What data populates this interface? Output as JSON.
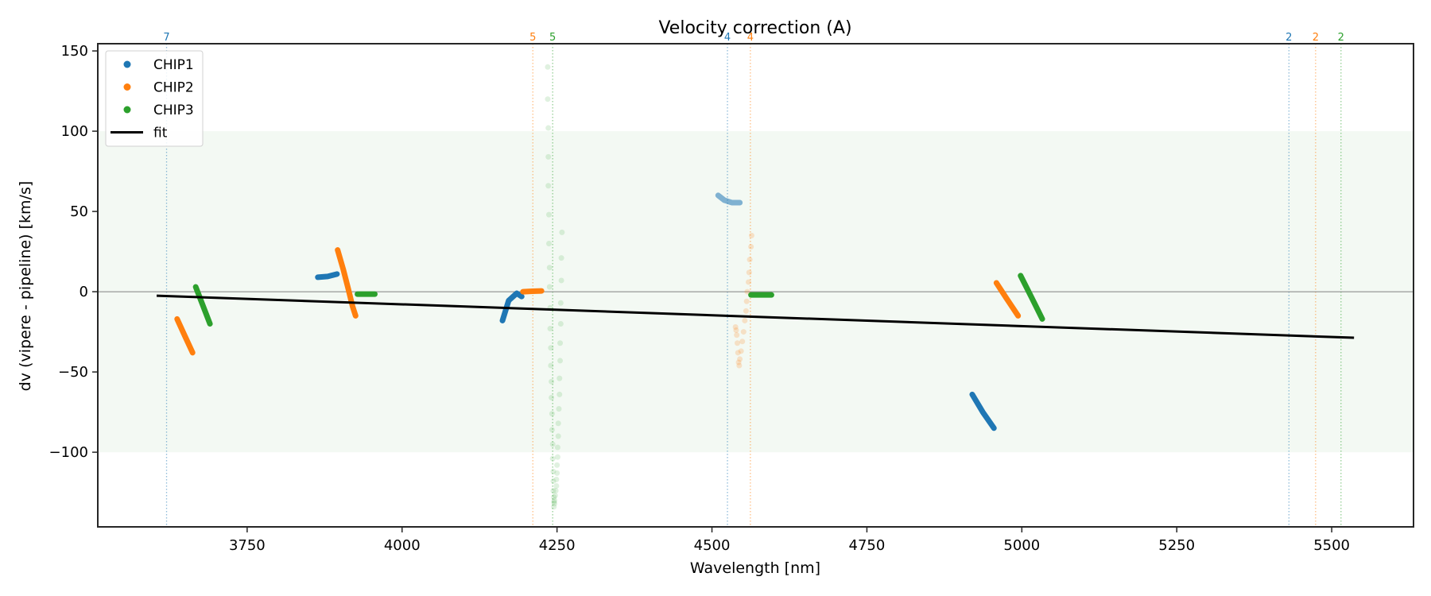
{
  "chart_data": {
    "type": "scatter",
    "title": "Velocity correction (A)",
    "xlabel": "Wavelength [nm]",
    "ylabel": "dv (vipere - pipeline) [km/s]",
    "xlim": [
      3509,
      5632
    ],
    "ylim": [
      -146.5,
      154.5
    ],
    "xticks": [
      3750,
      4000,
      4250,
      4500,
      4750,
      5000,
      5250,
      5500
    ],
    "xtick_labels": [
      "3750",
      "4000",
      "4250",
      "4500",
      "4750",
      "5000",
      "5250",
      "5500"
    ],
    "yticks": [
      -100,
      -50,
      0,
      50,
      100,
      150
    ],
    "ytick_labels": [
      "−100",
      "−50",
      "0",
      "50",
      "100",
      "150"
    ],
    "grid": false,
    "band": {
      "ymin": -100,
      "ymax": 100,
      "color": "#2ca02c",
      "alpha": 0.06
    },
    "zero_line": {
      "y": 0,
      "color": "#808080"
    },
    "colors": {
      "CHIP1": "#1f77b4",
      "CHIP2": "#ff7f0e",
      "CHIP3": "#2ca02c",
      "fit": "#000000"
    },
    "legend": {
      "placement": "upper-left",
      "entries": [
        {
          "label": "CHIP1",
          "kind": "marker",
          "color": "#1f77b4"
        },
        {
          "label": "CHIP2",
          "kind": "marker",
          "color": "#ff7f0e"
        },
        {
          "label": "CHIP3",
          "kind": "marker",
          "color": "#2ca02c"
        },
        {
          "label": "fit",
          "kind": "line",
          "color": "#000000"
        }
      ]
    },
    "vlines": [
      {
        "x": 3620,
        "label": "7",
        "chip": "CHIP1"
      },
      {
        "x": 4211,
        "label": "5",
        "chip": "CHIP2"
      },
      {
        "x": 4243,
        "label": "5",
        "chip": "CHIP3"
      },
      {
        "x": 4525,
        "label": "4",
        "chip": "CHIP1"
      },
      {
        "x": 4562,
        "label": "4",
        "chip": "CHIP2"
      },
      {
        "x": 5431,
        "label": "2",
        "chip": "CHIP1"
      },
      {
        "x": 5474,
        "label": "2",
        "chip": "CHIP2"
      },
      {
        "x": 5515,
        "label": "2",
        "chip": "CHIP3"
      }
    ],
    "fit": {
      "x": [
        3604,
        5536
      ],
      "y": [
        -2.5,
        -28.7
      ]
    },
    "series": [
      {
        "name": "CHIP1",
        "alpha": 1.0,
        "segments": [
          {
            "x": [
              3864,
              3880,
              3895
            ],
            "y": [
              9,
              9.5,
              11
            ]
          },
          {
            "x": [
              4162,
              4172,
              4185,
              4193
            ],
            "y": [
              -18,
              -5.5,
              -1,
              -3
            ]
          },
          {
            "x": [
              4920,
              4937,
              4955
            ],
            "y": [
              -64,
              -75,
              -85
            ]
          }
        ]
      },
      {
        "name": "CHIP1 (order 4, faint)",
        "chip": "CHIP1",
        "alpha": 0.55,
        "segments": [
          {
            "x": [
              4510,
              4520,
              4532,
              4545
            ],
            "y": [
              60,
              57,
              55.5,
              55.5
            ]
          }
        ]
      },
      {
        "name": "CHIP2",
        "alpha": 1.0,
        "segments": [
          {
            "x": [
              3637,
              3650,
              3662
            ],
            "y": [
              -17,
              -28,
              -38
            ]
          },
          {
            "x": [
              3896,
              3905,
              3913,
              3920,
              3925
            ],
            "y": [
              26,
              14,
              2,
              -9,
              -15
            ]
          },
          {
            "x": [
              4195,
              4210,
              4225
            ],
            "y": [
              0,
              0.3,
              0.5
            ]
          },
          {
            "x": [
              4959,
              4975,
              4994
            ],
            "y": [
              5.5,
              -4,
              -15
            ]
          }
        ]
      },
      {
        "name": "CHIP2 (order 4, faint)",
        "chip": "CHIP2",
        "alpha": 0.2,
        "points": {
          "x": [
            4564,
            4563,
            4561,
            4560,
            4559,
            4557,
            4556,
            4555,
            4553,
            4551,
            4549,
            4547,
            4545,
            4544,
            4543,
            4542,
            4541,
            4540,
            4539,
            4538
          ],
          "y": [
            35,
            28,
            20,
            12,
            6,
            0,
            -6,
            -12,
            -18,
            -25,
            -31,
            -37,
            -42,
            -46,
            -44,
            -38,
            -32,
            -27,
            -24,
            -22
          ]
        }
      },
      {
        "name": "CHIP3",
        "alpha": 1.0,
        "segments": [
          {
            "x": [
              3667,
              3678,
              3690
            ],
            "y": [
              3,
              -8,
              -20
            ]
          },
          {
            "x": [
              3928,
              3942,
              3956
            ],
            "y": [
              -1.5,
              -1.5,
              -1.5
            ]
          },
          {
            "x": [
              4563,
              4580,
              4596
            ],
            "y": [
              -2,
              -2,
              -2
            ]
          },
          {
            "x": [
              4998,
              5015,
              5033
            ],
            "y": [
              10,
              -3,
              -17
            ]
          }
        ]
      },
      {
        "name": "CHIP3 (order 5, faint)",
        "chip": "CHIP3",
        "alpha": 0.15,
        "points": {
          "x": [
            4235,
            4235,
            4236,
            4236,
            4236,
            4237,
            4237,
            4238,
            4238,
            4239,
            4239,
            4240,
            4240,
            4241,
            4241,
            4242,
            4242,
            4243,
            4243,
            4244,
            4244,
            4244,
            4245,
            4245,
            4245,
            4258,
            4257,
            4257,
            4256,
            4256,
            4255,
            4255,
            4254,
            4254,
            4253,
            4252,
            4252,
            4251,
            4251,
            4250,
            4250,
            4249,
            4249,
            4248,
            4247,
            4246,
            4246
          ],
          "y": [
            140,
            120,
            102,
            84,
            66,
            48,
            30,
            15,
            3,
            -10,
            -23,
            -35,
            -46,
            -56,
            -66,
            -76,
            -86,
            -95,
            -104,
            -112,
            -118,
            -124,
            -128,
            -131,
            -134,
            37,
            21,
            7,
            -7,
            -20,
            -32,
            -43,
            -54,
            -64,
            -73,
            -82,
            -90,
            -97,
            -103,
            -108,
            -113,
            -117,
            -121,
            -124,
            -127,
            -130,
            -132
          ]
        }
      }
    ]
  }
}
